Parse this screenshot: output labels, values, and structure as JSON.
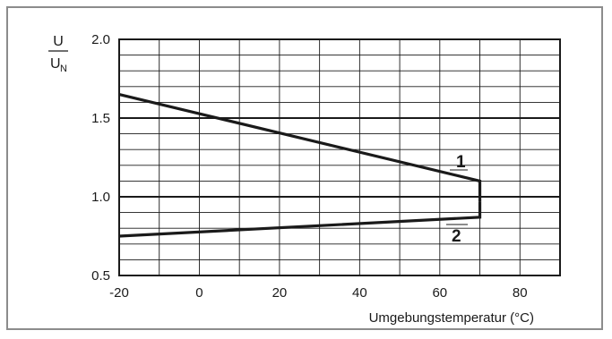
{
  "chart_data": {
    "type": "line",
    "title": "",
    "xlabel": "Umgebungstemperatur (°C)",
    "ylabel": {
      "numerator": "U",
      "denominator": "U",
      "denominator_sub": "N"
    },
    "xlim": [
      -20,
      90
    ],
    "ylim": [
      0.5,
      2.0
    ],
    "x_ticks": [
      -20,
      0,
      20,
      40,
      60,
      80
    ],
    "x_tick_labels": [
      "-20",
      "0",
      "20",
      "40",
      "60",
      "80"
    ],
    "y_ticks": [
      0.5,
      1.0,
      1.5,
      2.0
    ],
    "y_tick_labels": [
      "0.5",
      "1.0",
      "1.5",
      "2.0"
    ],
    "grid": {
      "x_step": 10,
      "y_step": 0.1,
      "y_major": [
        1.0,
        1.5
      ]
    },
    "series": [
      {
        "label": "1",
        "x": [
          -20,
          70,
          70
        ],
        "y": [
          1.65,
          1.1,
          0.97
        ]
      },
      {
        "label": "2",
        "x": [
          -20,
          70,
          70
        ],
        "y": [
          0.75,
          0.87,
          0.97
        ]
      }
    ],
    "colors": {
      "frame": "#8c8c8c",
      "grid": "#1a1a1a",
      "curve": "#1a1a1a",
      "background": "#ffffff"
    }
  }
}
